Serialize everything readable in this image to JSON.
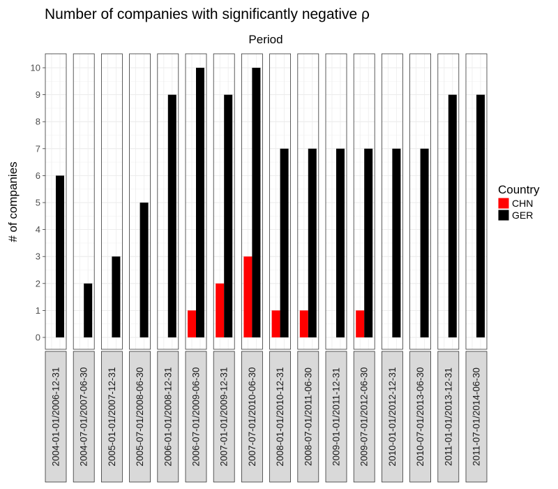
{
  "chart_data": {
    "type": "bar",
    "title": "Number of companies with significantly negative ρ",
    "subtitle": "Period",
    "xlabel": "",
    "ylabel": "# of companies",
    "ylim": [
      0,
      10
    ],
    "yticks": [
      0,
      1,
      2,
      3,
      4,
      5,
      6,
      7,
      8,
      9,
      10
    ],
    "grid": true,
    "legend": {
      "title": "Country",
      "placement": "right",
      "entries": [
        {
          "name": "CHN",
          "color": "#ff0000"
        },
        {
          "name": "GER",
          "color": "#000000"
        }
      ]
    },
    "categories": [
      "2004-01-01/2006-12-31",
      "2004-07-01/2007-06-30",
      "2005-01-01/2007-12-31",
      "2005-07-01/2008-06-30",
      "2006-01-01/2008-12-31",
      "2006-07-01/2009-06-30",
      "2007-01-01/2009-12-31",
      "2007-07-01/2010-06-30",
      "2008-01-01/2010-12-31",
      "2008-07-01/2011-06-30",
      "2009-01-01/2011-12-31",
      "2009-07-01/2012-06-30",
      "2010-01-01/2012-12-31",
      "2010-07-01/2013-06-30",
      "2011-01-01/2013-12-31",
      "2011-07-01/2014-06-30"
    ],
    "series": [
      {
        "name": "CHN",
        "color": "#ff0000",
        "values": [
          0,
          0,
          0,
          0,
          0,
          1,
          2,
          3,
          1,
          1,
          0,
          1,
          0,
          0,
          0,
          0
        ]
      },
      {
        "name": "GER",
        "color": "#000000",
        "values": [
          6,
          2,
          3,
          5,
          9,
          10,
          9,
          10,
          7,
          7,
          7,
          7,
          7,
          7,
          9,
          9
        ]
      }
    ]
  }
}
